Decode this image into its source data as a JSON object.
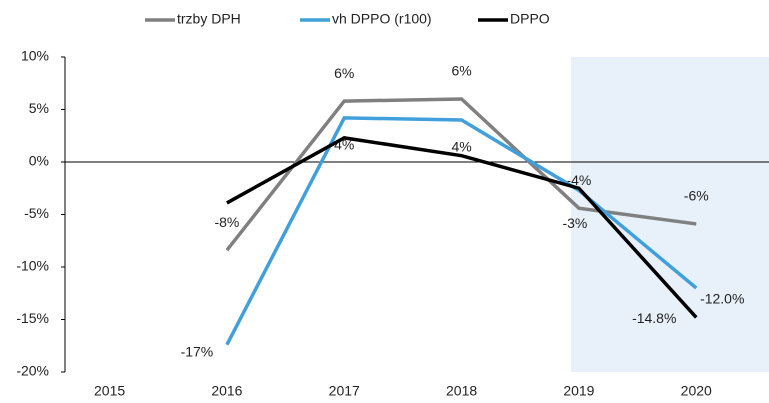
{
  "chart_data": {
    "type": "line",
    "categories": [
      "2015",
      "2016",
      "2017",
      "2018",
      "2019",
      "2020"
    ],
    "series": [
      {
        "name": "trzby DPH",
        "color": "#808080",
        "values": [
          null,
          -8.4,
          5.8,
          6.0,
          -4.4,
          -5.9
        ],
        "value_labels": [
          null,
          "-8%",
          "6%",
          "6%",
          "-4%",
          "-6%"
        ]
      },
      {
        "name": "vh DPPO (r100)",
        "color": "#41a0dc",
        "values": [
          null,
          -17.4,
          4.2,
          4.0,
          -2.7,
          -12.0
        ],
        "value_labels": [
          null,
          "-17%",
          "4%",
          "4%",
          "-3%",
          "-12.0%"
        ]
      },
      {
        "name": "DPPO",
        "color": "#000000",
        "values": [
          null,
          -3.9,
          2.3,
          0.6,
          -2.5,
          -14.8
        ],
        "value_labels": [
          null,
          null,
          null,
          null,
          null,
          "-14.8%"
        ]
      }
    ],
    "ylim": [
      -20,
      10
    ],
    "yticks": [
      {
        "value": -20,
        "label": "-20%"
      },
      {
        "value": -15,
        "label": "-15%"
      },
      {
        "value": -10,
        "label": "-10%"
      },
      {
        "value": -5,
        "label": "-5%"
      },
      {
        "value": 0,
        "label": "0%"
      },
      {
        "value": 5,
        "label": "5%"
      },
      {
        "value": 10,
        "label": "10%"
      }
    ],
    "grid": false,
    "legend": "top"
  }
}
